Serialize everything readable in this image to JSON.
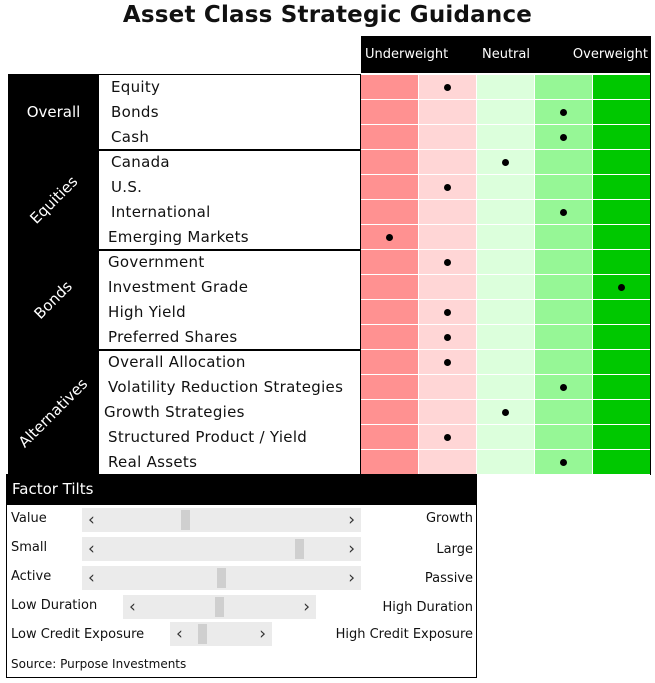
{
  "chart_data": {
    "type": "table",
    "title": "Asset Class Strategic Guidance",
    "columns": [
      "Underweight",
      "",
      "Neutral",
      "",
      "Overweight"
    ],
    "column_colors": [
      "#ff9191",
      "#ffd6d6",
      "#dcffdc",
      "#96f796",
      "#00c800"
    ],
    "groups": [
      {
        "name": "Overall",
        "rows": [
          {
            "label": "Equity",
            "level": 2
          },
          {
            "label": "Bonds",
            "level": 4
          },
          {
            "label": "Cash",
            "level": 4
          }
        ]
      },
      {
        "name": "Equities",
        "rows": [
          {
            "label": "Canada",
            "level": 3
          },
          {
            "label": "U.S.",
            "level": 2
          },
          {
            "label": "International",
            "level": 4
          },
          {
            "label": "Emerging Markets",
            "level": 1
          }
        ]
      },
      {
        "name": "Bonds",
        "rows": [
          {
            "label": "Government",
            "level": 2
          },
          {
            "label": "Investment Grade",
            "level": 5
          },
          {
            "label": "High Yield",
            "level": 2
          },
          {
            "label": "Preferred Shares",
            "level": 2
          }
        ]
      },
      {
        "name": "Alternatives",
        "rows": [
          {
            "label": "Overall Allocation",
            "level": 2
          },
          {
            "label": "Volatility Reduction Strategies",
            "level": 4
          },
          {
            "label": "Growth Strategies",
            "level": 3
          },
          {
            "label": "Structured Product / Yield",
            "level": 2
          },
          {
            "label": "Real Assets",
            "level": 4
          }
        ]
      }
    ]
  },
  "factor_tilts": {
    "title": "Factor Tilts",
    "arrow_left": "‹",
    "arrow_right": "›",
    "items": [
      {
        "left": "Value",
        "right": "Growth",
        "position": 0.37
      },
      {
        "left": "Small",
        "right": "Large",
        "position": 0.78
      },
      {
        "left": "Active",
        "right": "Passive",
        "position": 0.5
      },
      {
        "left": "Low Duration",
        "right": "High Duration",
        "position": 0.5
      },
      {
        "left": "Low Credit Exposure",
        "right": "High Credit Exposure",
        "position": 0.32
      }
    ]
  },
  "source": "Source: Purpose Investments"
}
